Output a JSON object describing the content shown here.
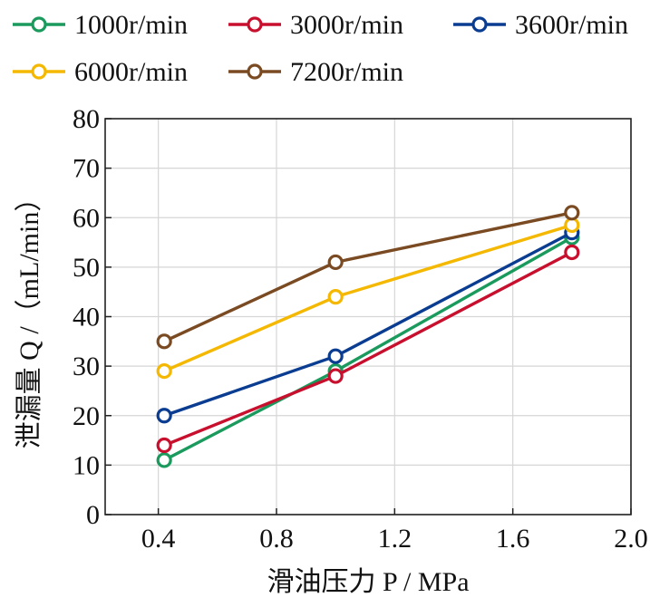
{
  "chart_data": {
    "type": "line",
    "xlabel": "滑油压力 P / MPa",
    "ylabel": "泄漏量 Q /（mL/min）",
    "xlim": [
      0.22,
      2.0
    ],
    "ylim": [
      0,
      80
    ],
    "xticks": [
      0.4,
      0.8,
      1.2,
      1.6,
      2.0
    ],
    "xtick_labels": [
      "0.4",
      "0.8",
      "1.2",
      "1.6",
      "2.0"
    ],
    "yticks": [
      0,
      10,
      20,
      30,
      40,
      50,
      60,
      70,
      80
    ],
    "ytick_labels": [
      "0",
      "10",
      "20",
      "30",
      "40",
      "50",
      "60",
      "70",
      "80"
    ],
    "grid": true,
    "legend": "top",
    "x": [
      0.42,
      1.0,
      1.8
    ],
    "series": [
      {
        "name": "1000r/min",
        "color": "#1a9a5c",
        "values": [
          11,
          29,
          56
        ]
      },
      {
        "name": "3000r/min",
        "color": "#c8102e",
        "values": [
          14,
          28,
          53
        ]
      },
      {
        "name": "3600r/min",
        "color": "#0a3d91",
        "values": [
          20,
          32,
          57
        ]
      },
      {
        "name": "6000r/min",
        "color": "#f5b800",
        "values": [
          29,
          44,
          58.5
        ]
      },
      {
        "name": "7200r/min",
        "color": "#7a4a22",
        "values": [
          35,
          51,
          61
        ]
      }
    ]
  }
}
